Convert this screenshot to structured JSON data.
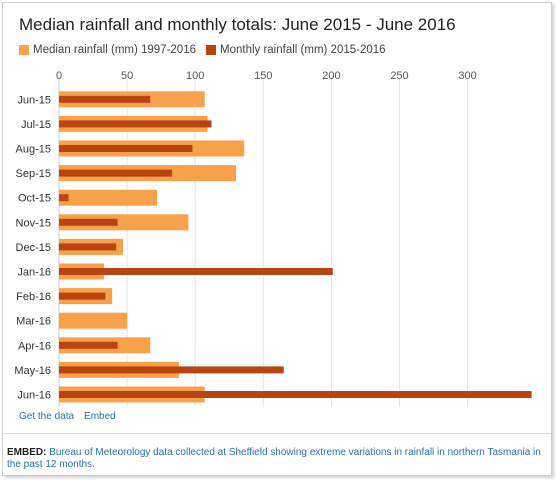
{
  "chart_data": {
    "type": "bar",
    "title": "Median rainfall and monthly totals: June 2015 - June 2016",
    "categories": [
      "Jun-15",
      "Jul-15",
      "Aug-15",
      "Sep-15",
      "Oct-15",
      "Nov-15",
      "Dec-15",
      "Jan-16",
      "Feb-16",
      "Mar-16",
      "Apr-16",
      "May-16",
      "Jun-16"
    ],
    "series": [
      {
        "name": "Median rainfall (mm) 1997-2016",
        "color": "#f7a24a",
        "values": [
          107,
          109,
          136,
          130,
          72,
          95,
          47,
          33,
          39,
          50,
          67,
          88,
          107
        ]
      },
      {
        "name": "Monthly rainfall (mm) 2015-2016",
        "color": "#b94311",
        "values": [
          67,
          112,
          98,
          83,
          7,
          43,
          42,
          201,
          34,
          0,
          43,
          165,
          347
        ]
      }
    ],
    "xticks": [
      0,
      50,
      100,
      150,
      200,
      250,
      300
    ],
    "xlim": [
      0,
      348
    ],
    "orientation": "horizontal",
    "grid": true,
    "legend_position": "top-left"
  },
  "links": {
    "get_data": "Get the data",
    "embed": "Embed"
  },
  "caption": {
    "label": "EMBED:",
    "text": "Bureau of Meteorology data collected at Sheffield showing extreme variations in rainfall in northern Tasmania in the past 12 months."
  }
}
